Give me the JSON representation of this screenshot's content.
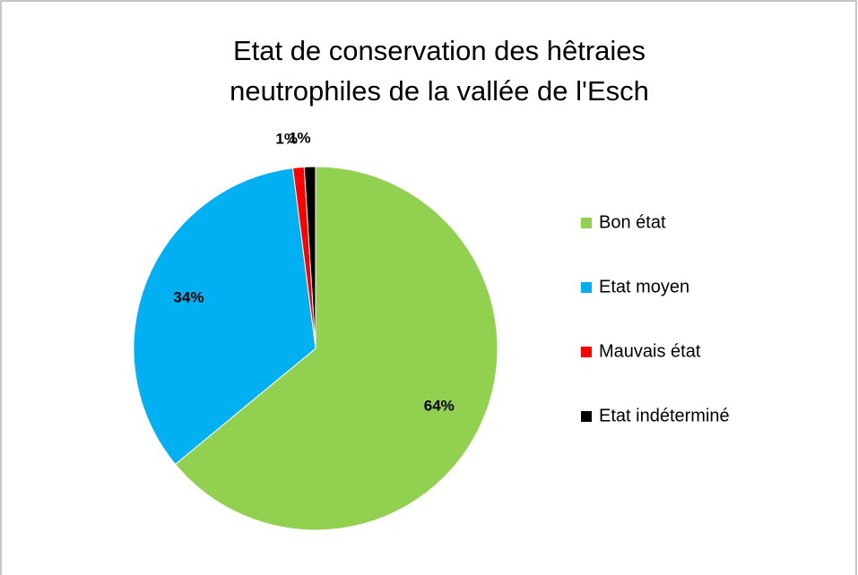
{
  "chart_data": {
    "type": "pie",
    "title": "Etat de conservation des hêtraies neutrophiles de la vallée de l'Esch",
    "categories": [
      "Bon état",
      "Etat moyen",
      "Mauvais état",
      "Etat indéterminé"
    ],
    "values": [
      64,
      34,
      1,
      1
    ],
    "value_labels": [
      "64%",
      "34%",
      "1%",
      "1%"
    ],
    "colors": [
      "#92d050",
      "#00b0f0",
      "#ff0000",
      "#000000"
    ],
    "legend": "right"
  }
}
